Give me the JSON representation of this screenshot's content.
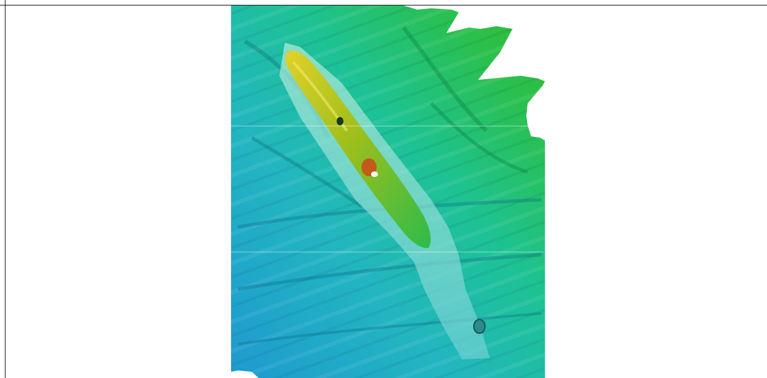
{
  "scene": {
    "subject": "bathymetry-render",
    "colors": {
      "deep": "#21a6c9",
      "mid": "#1ec48d",
      "shallow": "#2fbf3a",
      "hull": "#b8c515",
      "hull_highlight": "#e6d93b",
      "hot": "#c45a1a",
      "survey_swath": "#7cd9cf"
    }
  }
}
